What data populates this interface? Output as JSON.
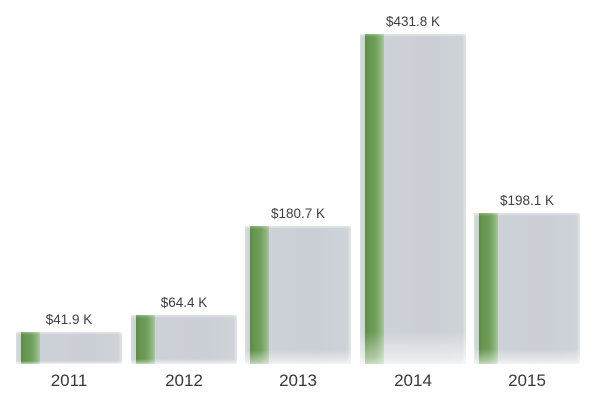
{
  "chart_data": {
    "type": "bar",
    "title": "",
    "xlabel": "",
    "ylabel": "",
    "categories": [
      "2011",
      "2012",
      "2013",
      "2014",
      "2015"
    ],
    "values": [
      41.9,
      64.4,
      180.7,
      431.8,
      198.1
    ],
    "value_labels": [
      "$41.9 K",
      "$64.4 K",
      "$180.7 K",
      "$431.8 K",
      "$198.1 K"
    ],
    "ylim": [
      0,
      440
    ],
    "grid": false,
    "legend": false,
    "axes_visible": false,
    "colors": {
      "background": "#ffffff",
      "bar_fill": "#ccd1d7",
      "bar_edge_highlight": "#e0e3e7",
      "accent_stripe": "#6b9b58",
      "accent_stripe_dark": "#5b8d4a",
      "accent_stripe_light": "#a9c89b",
      "label_text": "#3e3e3e"
    }
  }
}
